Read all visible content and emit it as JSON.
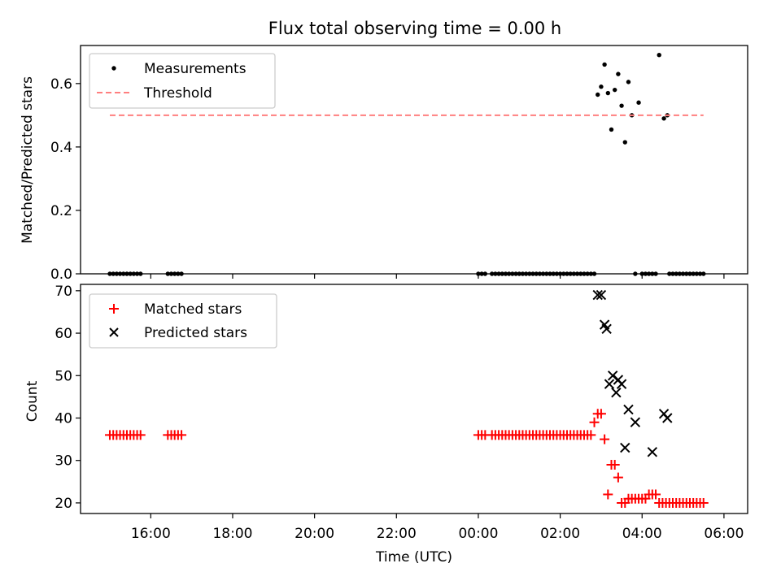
{
  "figure": {
    "title": "Flux total observing time = 0.00 h"
  },
  "chart_data": [
    {
      "type": "scatter",
      "ylabel": "Matched/Predicted stars",
      "xlabel": "",
      "ylim": [
        0,
        0.72
      ],
      "xlim": [
        "15:00",
        "06:00"
      ],
      "yticks": [
        0.0,
        0.2,
        0.4,
        0.6
      ],
      "ytick_labels": [
        "0.0",
        "0.2",
        "0.4",
        "0.6"
      ],
      "legend_position": "top-left",
      "series": [
        {
          "name": "Measurements",
          "color": "#000000",
          "marker": "dot",
          "points": [
            [
              "15:00",
              0.0
            ],
            [
              "15:05",
              0.0
            ],
            [
              "15:10",
              0.0
            ],
            [
              "15:15",
              0.0
            ],
            [
              "15:20",
              0.0
            ],
            [
              "15:25",
              0.0
            ],
            [
              "15:30",
              0.0
            ],
            [
              "15:35",
              0.0
            ],
            [
              "15:40",
              0.0
            ],
            [
              "15:45",
              0.0
            ],
            [
              "16:25",
              0.0
            ],
            [
              "16:30",
              0.0
            ],
            [
              "16:35",
              0.0
            ],
            [
              "16:40",
              0.0
            ],
            [
              "16:45",
              0.0
            ],
            [
              "00:00",
              0.0
            ],
            [
              "00:05",
              0.0
            ],
            [
              "00:10",
              0.0
            ],
            [
              "00:20",
              0.0
            ],
            [
              "00:25",
              0.0
            ],
            [
              "00:30",
              0.0
            ],
            [
              "00:35",
              0.0
            ],
            [
              "00:40",
              0.0
            ],
            [
              "00:45",
              0.0
            ],
            [
              "00:50",
              0.0
            ],
            [
              "00:55",
              0.0
            ],
            [
              "01:00",
              0.0
            ],
            [
              "01:05",
              0.0
            ],
            [
              "01:10",
              0.0
            ],
            [
              "01:15",
              0.0
            ],
            [
              "01:20",
              0.0
            ],
            [
              "01:25",
              0.0
            ],
            [
              "01:30",
              0.0
            ],
            [
              "01:35",
              0.0
            ],
            [
              "01:40",
              0.0
            ],
            [
              "01:45",
              0.0
            ],
            [
              "01:50",
              0.0
            ],
            [
              "01:55",
              0.0
            ],
            [
              "02:00",
              0.0
            ],
            [
              "02:05",
              0.0
            ],
            [
              "02:10",
              0.0
            ],
            [
              "02:15",
              0.0
            ],
            [
              "02:20",
              0.0
            ],
            [
              "02:25",
              0.0
            ],
            [
              "02:30",
              0.0
            ],
            [
              "02:35",
              0.0
            ],
            [
              "02:40",
              0.0
            ],
            [
              "02:45",
              0.0
            ],
            [
              "02:50",
              0.0
            ],
            [
              "02:55",
              0.565
            ],
            [
              "03:00",
              0.59
            ],
            [
              "03:05",
              0.66
            ],
            [
              "03:10",
              0.57
            ],
            [
              "03:15",
              0.455
            ],
            [
              "03:20",
              0.58
            ],
            [
              "03:25",
              0.63
            ],
            [
              "03:30",
              0.53
            ],
            [
              "03:35",
              0.415
            ],
            [
              "03:40",
              0.605
            ],
            [
              "03:45",
              0.5
            ],
            [
              "03:55",
              0.54
            ],
            [
              "03:50",
              0.0
            ],
            [
              "04:00",
              0.0
            ],
            [
              "04:05",
              0.0
            ],
            [
              "04:10",
              0.0
            ],
            [
              "04:15",
              0.0
            ],
            [
              "04:20",
              0.0
            ],
            [
              "04:25",
              0.69
            ],
            [
              "04:32",
              0.49
            ],
            [
              "04:37",
              0.5
            ],
            [
              "04:40",
              0.0
            ],
            [
              "04:45",
              0.0
            ],
            [
              "04:50",
              0.0
            ],
            [
              "04:55",
              0.0
            ],
            [
              "05:00",
              0.0
            ],
            [
              "05:05",
              0.0
            ],
            [
              "05:10",
              0.0
            ],
            [
              "05:15",
              0.0
            ],
            [
              "05:20",
              0.0
            ],
            [
              "05:25",
              0.0
            ],
            [
              "05:30",
              0.0
            ]
          ]
        },
        {
          "name": "Threshold",
          "color": "#ff7f7f",
          "marker": "dashed-line",
          "points": [
            [
              "15:00",
              0.5
            ],
            [
              "05:30",
              0.5
            ]
          ]
        }
      ]
    },
    {
      "type": "scatter",
      "ylabel": "Count",
      "xlabel": "Time (UTC)",
      "ylim": [
        17.5,
        71.5
      ],
      "xlim": [
        "15:00",
        "06:00"
      ],
      "yticks": [
        20,
        30,
        40,
        50,
        60,
        70
      ],
      "ytick_labels": [
        "20",
        "30",
        "40",
        "50",
        "60",
        "70"
      ],
      "xticks": [
        "16:00",
        "18:00",
        "20:00",
        "22:00",
        "00:00",
        "02:00",
        "04:00",
        "06:00"
      ],
      "xtick_labels": [
        "16:00",
        "18:00",
        "20:00",
        "22:00",
        "00:00",
        "02:00",
        "04:00",
        "06:00"
      ],
      "legend_position": "top-left",
      "series": [
        {
          "name": "Matched stars",
          "color": "#ff0000",
          "marker": "plus",
          "points": [
            [
              "15:00",
              36
            ],
            [
              "15:05",
              36
            ],
            [
              "15:10",
              36
            ],
            [
              "15:15",
              36
            ],
            [
              "15:20",
              36
            ],
            [
              "15:25",
              36
            ],
            [
              "15:30",
              36
            ],
            [
              "15:35",
              36
            ],
            [
              "15:40",
              36
            ],
            [
              "15:45",
              36
            ],
            [
              "16:25",
              36
            ],
            [
              "16:30",
              36
            ],
            [
              "16:35",
              36
            ],
            [
              "16:40",
              36
            ],
            [
              "16:45",
              36
            ],
            [
              "00:00",
              36
            ],
            [
              "00:05",
              36
            ],
            [
              "00:10",
              36
            ],
            [
              "00:20",
              36
            ],
            [
              "00:25",
              36
            ],
            [
              "00:30",
              36
            ],
            [
              "00:35",
              36
            ],
            [
              "00:40",
              36
            ],
            [
              "00:45",
              36
            ],
            [
              "00:50",
              36
            ],
            [
              "00:55",
              36
            ],
            [
              "01:00",
              36
            ],
            [
              "01:05",
              36
            ],
            [
              "01:10",
              36
            ],
            [
              "01:15",
              36
            ],
            [
              "01:20",
              36
            ],
            [
              "01:25",
              36
            ],
            [
              "01:30",
              36
            ],
            [
              "01:35",
              36
            ],
            [
              "01:40",
              36
            ],
            [
              "01:45",
              36
            ],
            [
              "01:50",
              36
            ],
            [
              "01:55",
              36
            ],
            [
              "02:00",
              36
            ],
            [
              "02:05",
              36
            ],
            [
              "02:10",
              36
            ],
            [
              "02:15",
              36
            ],
            [
              "02:20",
              36
            ],
            [
              "02:25",
              36
            ],
            [
              "02:30",
              36
            ],
            [
              "02:35",
              36
            ],
            [
              "02:40",
              36
            ],
            [
              "02:45",
              36
            ],
            [
              "02:50",
              39
            ],
            [
              "02:55",
              41
            ],
            [
              "03:00",
              41
            ],
            [
              "03:05",
              35
            ],
            [
              "03:10",
              22
            ],
            [
              "03:15",
              29
            ],
            [
              "03:20",
              29
            ],
            [
              "03:25",
              26
            ],
            [
              "03:30",
              20
            ],
            [
              "03:35",
              20
            ],
            [
              "03:40",
              21
            ],
            [
              "03:45",
              21
            ],
            [
              "03:50",
              21
            ],
            [
              "03:55",
              21
            ],
            [
              "04:00",
              21
            ],
            [
              "04:05",
              21
            ],
            [
              "04:10",
              22
            ],
            [
              "04:15",
              22
            ],
            [
              "04:20",
              22
            ],
            [
              "04:25",
              20
            ],
            [
              "04:30",
              20
            ],
            [
              "04:35",
              20
            ],
            [
              "04:40",
              20
            ],
            [
              "04:45",
              20
            ],
            [
              "04:50",
              20
            ],
            [
              "04:55",
              20
            ],
            [
              "05:00",
              20
            ],
            [
              "05:05",
              20
            ],
            [
              "05:10",
              20
            ],
            [
              "05:15",
              20
            ],
            [
              "05:20",
              20
            ],
            [
              "05:25",
              20
            ],
            [
              "05:30",
              20
            ]
          ]
        },
        {
          "name": "Predicted stars",
          "color": "#000000",
          "marker": "x",
          "points": [
            [
              "02:55",
              69
            ],
            [
              "03:00",
              69
            ],
            [
              "03:05",
              62
            ],
            [
              "03:08",
              61
            ],
            [
              "03:12",
              48
            ],
            [
              "03:17",
              50
            ],
            [
              "03:22",
              46
            ],
            [
              "03:25",
              49
            ],
            [
              "03:30",
              48
            ],
            [
              "03:35",
              33
            ],
            [
              "03:40",
              42
            ],
            [
              "03:50",
              39
            ],
            [
              "04:15",
              32
            ],
            [
              "04:32",
              41
            ],
            [
              "04:37",
              40
            ]
          ]
        }
      ]
    }
  ]
}
